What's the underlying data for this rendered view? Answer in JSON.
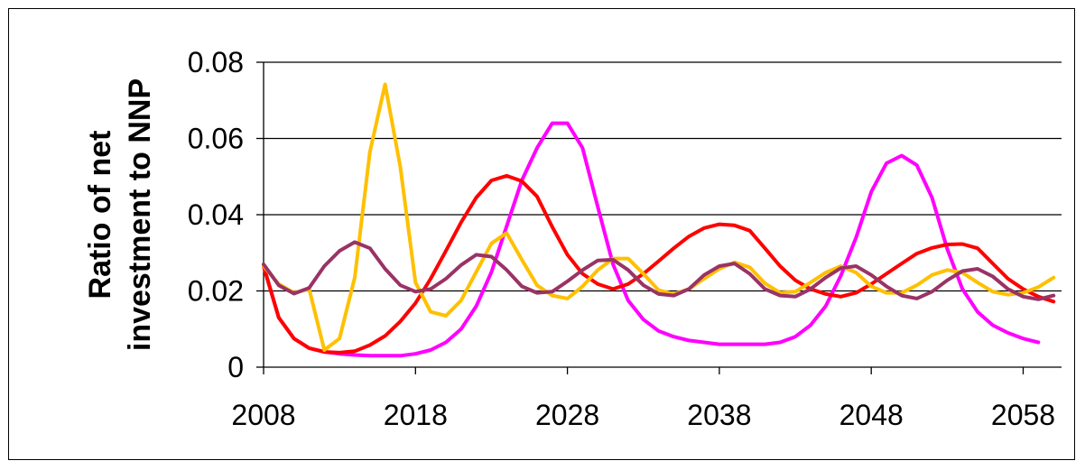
{
  "chart_data": {
    "type": "line",
    "title": "",
    "xlabel": "",
    "ylabel_lines": [
      "Ratio of net",
      "investment to NNP"
    ],
    "xlim": [
      2008,
      2060
    ],
    "ylim": [
      0,
      0.08
    ],
    "x_ticks": [
      2008,
      2018,
      2028,
      2038,
      2048,
      2058
    ],
    "y_ticks": [
      0,
      0.02,
      0.04,
      0.06,
      0.08
    ],
    "y_tick_labels": [
      "0",
      "0.02",
      "0.04",
      "0.06",
      "0.08"
    ],
    "grid": "horizontal",
    "legend": "none",
    "series": [
      {
        "color": "#FF00FF",
        "points": [
          [
            2008,
            0.0265
          ],
          [
            2009,
            0.013
          ],
          [
            2010,
            0.0075
          ],
          [
            2011,
            0.005
          ],
          [
            2012,
            0.004
          ],
          [
            2013,
            0.0035
          ],
          [
            2014,
            0.0032
          ],
          [
            2015,
            0.003
          ],
          [
            2016,
            0.003
          ],
          [
            2017,
            0.003
          ],
          [
            2018,
            0.0035
          ],
          [
            2019,
            0.0045
          ],
          [
            2020,
            0.0065
          ],
          [
            2021,
            0.01
          ],
          [
            2022,
            0.016
          ],
          [
            2023,
            0.025
          ],
          [
            2024,
            0.037
          ],
          [
            2025,
            0.049
          ],
          [
            2026,
            0.0575
          ],
          [
            2027,
            0.064
          ],
          [
            2028,
            0.064
          ],
          [
            2029,
            0.0575
          ],
          [
            2030,
            0.042
          ],
          [
            2031,
            0.027
          ],
          [
            2032,
            0.0175
          ],
          [
            2033,
            0.0125
          ],
          [
            2034,
            0.0095
          ],
          [
            2035,
            0.008
          ],
          [
            2036,
            0.007
          ],
          [
            2037,
            0.0065
          ],
          [
            2038,
            0.006
          ],
          [
            2039,
            0.006
          ],
          [
            2040,
            0.006
          ],
          [
            2041,
            0.006
          ],
          [
            2042,
            0.0065
          ],
          [
            2043,
            0.008
          ],
          [
            2044,
            0.011
          ],
          [
            2045,
            0.016
          ],
          [
            2046,
            0.024
          ],
          [
            2047,
            0.034
          ],
          [
            2048,
            0.046
          ],
          [
            2049,
            0.0535
          ],
          [
            2050,
            0.0555
          ],
          [
            2051,
            0.053
          ],
          [
            2052,
            0.0445
          ],
          [
            2053,
            0.031
          ],
          [
            2054,
            0.0205
          ],
          [
            2055,
            0.0145
          ],
          [
            2056,
            0.011
          ],
          [
            2057,
            0.009
          ],
          [
            2058,
            0.0075
          ],
          [
            2059,
            0.0065
          ]
        ]
      },
      {
        "color": "#FF0000",
        "points": [
          [
            2008,
            0.0265
          ],
          [
            2009,
            0.013
          ],
          [
            2010,
            0.0075
          ],
          [
            2011,
            0.005
          ],
          [
            2012,
            0.004
          ],
          [
            2013,
            0.0038
          ],
          [
            2014,
            0.0042
          ],
          [
            2015,
            0.0058
          ],
          [
            2016,
            0.0082
          ],
          [
            2017,
            0.012
          ],
          [
            2018,
            0.0168
          ],
          [
            2019,
            0.0232
          ],
          [
            2020,
            0.0305
          ],
          [
            2021,
            0.038
          ],
          [
            2022,
            0.0445
          ],
          [
            2023,
            0.049
          ],
          [
            2024,
            0.0502
          ],
          [
            2025,
            0.0488
          ],
          [
            2026,
            0.0448
          ],
          [
            2027,
            0.0368
          ],
          [
            2028,
            0.0295
          ],
          [
            2029,
            0.0245
          ],
          [
            2030,
            0.0218
          ],
          [
            2031,
            0.0205
          ],
          [
            2032,
            0.0218
          ],
          [
            2033,
            0.0245
          ],
          [
            2034,
            0.0278
          ],
          [
            2035,
            0.0312
          ],
          [
            2036,
            0.0343
          ],
          [
            2037,
            0.0365
          ],
          [
            2038,
            0.0375
          ],
          [
            2039,
            0.0372
          ],
          [
            2040,
            0.0358
          ],
          [
            2041,
            0.0312
          ],
          [
            2042,
            0.0265
          ],
          [
            2043,
            0.0228
          ],
          [
            2044,
            0.0205
          ],
          [
            2045,
            0.0192
          ],
          [
            2046,
            0.0185
          ],
          [
            2047,
            0.0195
          ],
          [
            2048,
            0.0218
          ],
          [
            2049,
            0.0245
          ],
          [
            2050,
            0.0272
          ],
          [
            2051,
            0.0298
          ],
          [
            2052,
            0.0313
          ],
          [
            2053,
            0.0322
          ],
          [
            2054,
            0.0323
          ],
          [
            2055,
            0.0312
          ],
          [
            2056,
            0.0272
          ],
          [
            2057,
            0.0232
          ],
          [
            2058,
            0.0205
          ],
          [
            2059,
            0.0185
          ],
          [
            2060,
            0.0172
          ]
        ]
      },
      {
        "color": "#FFC000",
        "points": [
          [
            2008,
            0.0265
          ],
          [
            2009,
            0.0218
          ],
          [
            2010,
            0.0195
          ],
          [
            2011,
            0.0205
          ],
          [
            2012,
            0.0045
          ],
          [
            2013,
            0.0075
          ],
          [
            2014,
            0.0235
          ],
          [
            2015,
            0.0565
          ],
          [
            2016,
            0.0742
          ],
          [
            2017,
            0.0525
          ],
          [
            2018,
            0.0222
          ],
          [
            2019,
            0.0145
          ],
          [
            2020,
            0.0135
          ],
          [
            2021,
            0.0175
          ],
          [
            2022,
            0.025
          ],
          [
            2023,
            0.0325
          ],
          [
            2024,
            0.0352
          ],
          [
            2025,
            0.0282
          ],
          [
            2026,
            0.0215
          ],
          [
            2027,
            0.0188
          ],
          [
            2028,
            0.018
          ],
          [
            2029,
            0.0212
          ],
          [
            2030,
            0.0255
          ],
          [
            2031,
            0.0285
          ],
          [
            2032,
            0.0285
          ],
          [
            2033,
            0.0245
          ],
          [
            2034,
            0.0202
          ],
          [
            2035,
            0.0192
          ],
          [
            2036,
            0.0205
          ],
          [
            2037,
            0.0232
          ],
          [
            2038,
            0.0258
          ],
          [
            2039,
            0.0275
          ],
          [
            2040,
            0.0262
          ],
          [
            2041,
            0.022
          ],
          [
            2042,
            0.0195
          ],
          [
            2043,
            0.0198
          ],
          [
            2044,
            0.0222
          ],
          [
            2045,
            0.0248
          ],
          [
            2046,
            0.0265
          ],
          [
            2047,
            0.0248
          ],
          [
            2048,
            0.0212
          ],
          [
            2049,
            0.0195
          ],
          [
            2050,
            0.0195
          ],
          [
            2051,
            0.0215
          ],
          [
            2052,
            0.0242
          ],
          [
            2053,
            0.0255
          ],
          [
            2054,
            0.0248
          ],
          [
            2055,
            0.0222
          ],
          [
            2056,
            0.0198
          ],
          [
            2057,
            0.019
          ],
          [
            2058,
            0.0195
          ],
          [
            2059,
            0.021
          ],
          [
            2060,
            0.0235
          ]
        ]
      },
      {
        "color": "#993366",
        "points": [
          [
            2008,
            0.027
          ],
          [
            2009,
            0.0215
          ],
          [
            2010,
            0.0193
          ],
          [
            2011,
            0.0208
          ],
          [
            2012,
            0.0265
          ],
          [
            2013,
            0.0305
          ],
          [
            2014,
            0.0328
          ],
          [
            2015,
            0.0312
          ],
          [
            2016,
            0.0258
          ],
          [
            2017,
            0.0215
          ],
          [
            2018,
            0.0198
          ],
          [
            2019,
            0.0205
          ],
          [
            2020,
            0.0232
          ],
          [
            2021,
            0.0268
          ],
          [
            2022,
            0.0295
          ],
          [
            2023,
            0.029
          ],
          [
            2024,
            0.0255
          ],
          [
            2025,
            0.0212
          ],
          [
            2026,
            0.0195
          ],
          [
            2027,
            0.0198
          ],
          [
            2028,
            0.0225
          ],
          [
            2029,
            0.0255
          ],
          [
            2030,
            0.028
          ],
          [
            2031,
            0.0282
          ],
          [
            2032,
            0.0255
          ],
          [
            2033,
            0.0215
          ],
          [
            2034,
            0.0192
          ],
          [
            2035,
            0.0188
          ],
          [
            2036,
            0.0205
          ],
          [
            2037,
            0.0242
          ],
          [
            2038,
            0.0265
          ],
          [
            2039,
            0.0272
          ],
          [
            2040,
            0.0245
          ],
          [
            2041,
            0.0205
          ],
          [
            2042,
            0.0188
          ],
          [
            2043,
            0.0185
          ],
          [
            2044,
            0.0205
          ],
          [
            2045,
            0.0235
          ],
          [
            2046,
            0.026
          ],
          [
            2047,
            0.0265
          ],
          [
            2048,
            0.0242
          ],
          [
            2049,
            0.0212
          ],
          [
            2050,
            0.0188
          ],
          [
            2051,
            0.018
          ],
          [
            2052,
            0.0198
          ],
          [
            2053,
            0.0228
          ],
          [
            2054,
            0.0252
          ],
          [
            2055,
            0.0258
          ],
          [
            2056,
            0.0238
          ],
          [
            2057,
            0.0205
          ],
          [
            2058,
            0.0185
          ],
          [
            2059,
            0.0178
          ],
          [
            2060,
            0.0188
          ]
        ]
      }
    ]
  }
}
